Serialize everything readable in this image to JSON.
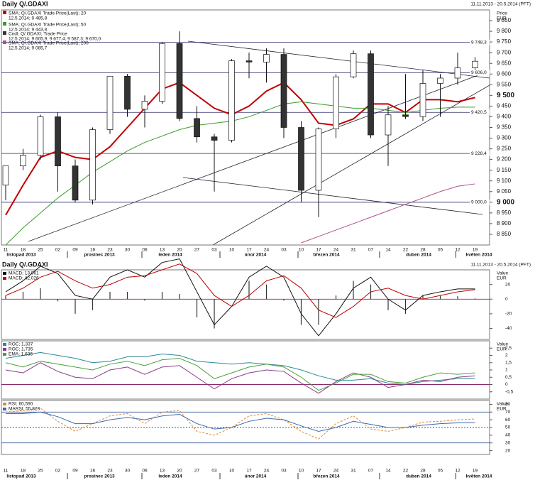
{
  "header": {
    "title": "Daily Q/.GDAXI",
    "range": "11.11.2013 - 20.5.2014 (PFT)"
  },
  "chart_data": [
    {
      "type": "candlestick",
      "x": [
        "11",
        "18",
        "25",
        "02",
        "09",
        "16",
        "23",
        "30",
        "06",
        "13",
        "20",
        "27",
        "03",
        "10",
        "17",
        "24",
        "03",
        "10",
        "17",
        "24",
        "31",
        "07",
        "14",
        "22",
        "28",
        "05",
        "12",
        "19"
      ],
      "months": [
        "listopad 2013",
        "prosinec 2013",
        "leden 2014",
        "únor 2014",
        "březen 2014",
        "duben 2014",
        "květen 2014"
      ],
      "candle_name": "Cndl; Q/.GDAXI; Trade Price",
      "candle_detail": "12.5.2014; 9 605,9; 9 677,4; 9 587,3; 9 670,0",
      "open": [
        9080,
        9170,
        9220,
        9400,
        9170,
        9010,
        9340,
        9590,
        9435,
        9473,
        9743,
        9392,
        9306,
        9290,
        9662,
        9656,
        9692,
        9350,
        9056,
        9343,
        9587,
        9695,
        9315,
        9409,
        9401,
        9556,
        9581,
        9629
      ],
      "high": [
        9170,
        9250,
        9410,
        9420,
        9200,
        9350,
        9590,
        9600,
        9500,
        9750,
        9800,
        9450,
        9320,
        9670,
        9700,
        9720,
        9720,
        9380,
        9350,
        9600,
        9710,
        9710,
        9450,
        9600,
        9620,
        9600,
        9700,
        9680
      ],
      "low": [
        9010,
        9150,
        9200,
        9050,
        9000,
        8990,
        9320,
        9400,
        9350,
        9460,
        9380,
        9280,
        9050,
        9280,
        9580,
        9560,
        9300,
        9000,
        8930,
        9300,
        9580,
        9300,
        9170,
        9390,
        9380,
        9400,
        9550,
        9620
      ],
      "close": [
        9170,
        9220,
        9400,
        9170,
        9010,
        9340,
        9590,
        9435,
        9473,
        9743,
        9392,
        9306,
        9290,
        9662,
        9656,
        9692,
        9350,
        9056,
        9343,
        9587,
        9695,
        9315,
        9409,
        9401,
        9556,
        9581,
        9629,
        9660
      ],
      "series": [
        {
          "name": "SMA; Q/.GDAXI Trade Price(Last); 20",
          "detail": "12.5.2014; 9 485,8",
          "color": "#c00000",
          "values": [
            8940,
            9080,
            9210,
            9240,
            9210,
            9200,
            9260,
            9350,
            9440,
            9530,
            9560,
            9500,
            9440,
            9410,
            9450,
            9520,
            9560,
            9480,
            9370,
            9360,
            9390,
            9460,
            9460,
            9420,
            9480,
            9480,
            9470,
            9490
          ]
        },
        {
          "name": "SMA; Q/.GDAXI Trade Price(Last); 50",
          "detail": "12.5.2014; 9 443,8",
          "color": "#3a9a2a",
          "values": [
            8800,
            8880,
            8950,
            9020,
            9080,
            9140,
            9190,
            9240,
            9280,
            9310,
            9340,
            9360,
            9370,
            9380,
            9400,
            9430,
            9460,
            9470,
            9460,
            9450,
            9440,
            9440,
            9430,
            9420,
            9430,
            9440,
            9445,
            9445
          ]
        },
        {
          "name": "SMA; Q/.GDAXI Trade Price(Last); 200",
          "detail": "12.5.2014; 9 085,7",
          "color": "#b0508a",
          "values": [
            null,
            null,
            null,
            null,
            null,
            null,
            null,
            null,
            null,
            null,
            null,
            null,
            null,
            null,
            null,
            null,
            null,
            8810,
            8840,
            8870,
            8900,
            8930,
            8960,
            8990,
            9020,
            9050,
            9075,
            9086
          ]
        }
      ],
      "levels": [
        {
          "value": 9748.3,
          "label": "9 748,3"
        },
        {
          "value": 9606.0,
          "label": "9 606,0"
        },
        {
          "value": 9420.5,
          "label": "9 420,5"
        },
        {
          "value": 9228.4,
          "label": "9 228,4"
        },
        {
          "value": 9000.0,
          "label": "9 000,0"
        }
      ],
      "y_unit": [
        "Price",
        "EUR"
      ],
      "ylim": [
        8800,
        9900
      ],
      "yticks": [
        {
          "value": 9850,
          "label": "9 850"
        },
        {
          "value": 9800,
          "label": "9 800"
        },
        {
          "value": 9750,
          "label": "9 750"
        },
        {
          "value": 9700,
          "label": "9 700"
        },
        {
          "value": 9650,
          "label": "9 650"
        },
        {
          "value": 9600,
          "label": "9 600"
        },
        {
          "value": 9550,
          "label": "9 550"
        },
        {
          "value": 9500,
          "label": "9 500"
        },
        {
          "value": 9450,
          "label": "9 450"
        },
        {
          "value": 9400,
          "label": "9 400"
        },
        {
          "value": 9350,
          "label": "9 350"
        },
        {
          "value": 9300,
          "label": "9 300"
        },
        {
          "value": 9250,
          "label": "9 250"
        },
        {
          "value": 9200,
          "label": "9 200"
        },
        {
          "value": 9150,
          "label": "9 150"
        },
        {
          "value": 9100,
          "label": "9 100"
        },
        {
          "value": 9050,
          "label": "9 050"
        },
        {
          "value": 9000,
          "label": "9 000"
        },
        {
          "value": 8950,
          "label": "8 950"
        },
        {
          "value": 8900,
          "label": "8 900"
        },
        {
          "value": 8850,
          "label": "8 850"
        }
      ]
    },
    {
      "type": "macd",
      "series": [
        {
          "name": "MACD; 13,961",
          "color": "#111111",
          "values": [
            10,
            25,
            45,
            35,
            5,
            0,
            30,
            40,
            30,
            50,
            55,
            10,
            -35,
            -10,
            30,
            45,
            30,
            -20,
            -50,
            -20,
            15,
            30,
            0,
            -15,
            5,
            10,
            14,
            14
          ]
        },
        {
          "name": "MACD; 42,026",
          "color": "#c00000",
          "values": [
            5,
            15,
            30,
            38,
            25,
            15,
            20,
            30,
            32,
            40,
            48,
            35,
            5,
            -10,
            5,
            25,
            32,
            15,
            -15,
            -25,
            -10,
            10,
            15,
            5,
            0,
            5,
            10,
            13
          ]
        }
      ],
      "histogram": [
        5,
        10,
        15,
        -3,
        -20,
        -15,
        10,
        10,
        -2,
        10,
        7,
        -25,
        -40,
        0,
        25,
        20,
        -2,
        -35,
        -35,
        5,
        25,
        20,
        -15,
        -20,
        5,
        5,
        4,
        1
      ],
      "ref_lines": [
        0
      ],
      "y_unit": [
        "Value",
        "EUR"
      ],
      "ylim": [
        -55,
        40
      ],
      "yticks": [
        20,
        0,
        -20,
        -40
      ]
    },
    {
      "type": "line",
      "series": [
        {
          "name": "ROC; 1,337",
          "color": "#2a8a9a",
          "values": [
            1.8,
            2.0,
            2.2,
            2.0,
            1.8,
            1.5,
            1.6,
            1.9,
            1.9,
            2.1,
            2.0,
            1.6,
            1.5,
            1.4,
            1.5,
            1.4,
            1.3,
            1.0,
            0.6,
            0.3,
            0.3,
            0.4,
            0.1,
            0.0,
            0.2,
            0.3,
            0.4,
            0.4
          ]
        },
        {
          "name": "ROC; 1,735",
          "color": "#8a3a8a",
          "values": [
            1.0,
            0.8,
            1.5,
            0.9,
            0.5,
            0.4,
            1.0,
            1.2,
            0.7,
            1.2,
            1.3,
            0.5,
            -0.3,
            0.4,
            0.8,
            1.0,
            0.9,
            0.1,
            -0.6,
            0.2,
            0.8,
            0.5,
            -0.2,
            0.0,
            0.3,
            0.2,
            0.5,
            0.6
          ]
        },
        {
          "name": "EMA; 1,636",
          "color": "#4aa03a",
          "values": [
            1.5,
            1.2,
            1.6,
            1.4,
            1.2,
            1.0,
            1.4,
            1.6,
            1.3,
            1.7,
            1.8,
            1.3,
            0.4,
            0.8,
            1.2,
            1.4,
            1.2,
            0.5,
            -0.4,
            0.1,
            0.7,
            0.7,
            0.2,
            0.1,
            0.5,
            0.8,
            0.7,
            0.8
          ]
        }
      ],
      "ref_lines": [
        0
      ],
      "y_unit": [
        "Value",
        "EUR"
      ],
      "ylim": [
        -1,
        3
      ],
      "yticks": [
        {
          "value": 2.5,
          "label": "2,5"
        },
        2,
        {
          "value": 1.5,
          "label": "1,5"
        },
        1,
        {
          "value": 0.5,
          "label": "0,5"
        },
        0,
        {
          "value": -0.5,
          "label": "-0,5"
        }
      ]
    },
    {
      "type": "line",
      "series": [
        {
          "name": "RSI; 60,590",
          "color": "#e08a30",
          "dashed": true,
          "values": [
            70,
            72,
            75,
            58,
            45,
            55,
            65,
            68,
            55,
            70,
            72,
            45,
            40,
            50,
            65,
            68,
            60,
            45,
            35,
            55,
            65,
            48,
            45,
            50,
            57,
            58,
            60,
            61
          ]
        },
        {
          "name": "MARSI; 55,823",
          "color": "#3a6ab0",
          "values": [
            68,
            68,
            70,
            64,
            55,
            55,
            60,
            63,
            60,
            65,
            67,
            55,
            48,
            50,
            58,
            62,
            60,
            52,
            45,
            50,
            58,
            54,
            50,
            50,
            53,
            55,
            56,
            56
          ]
        }
      ],
      "ref_lines": [
        70,
        50,
        30
      ],
      "y_unit": [
        "Value",
        "EUR"
      ],
      "ylim": [
        15,
        85
      ],
      "yticks": [
        80,
        70,
        60,
        50,
        40,
        30,
        20
      ]
    }
  ]
}
